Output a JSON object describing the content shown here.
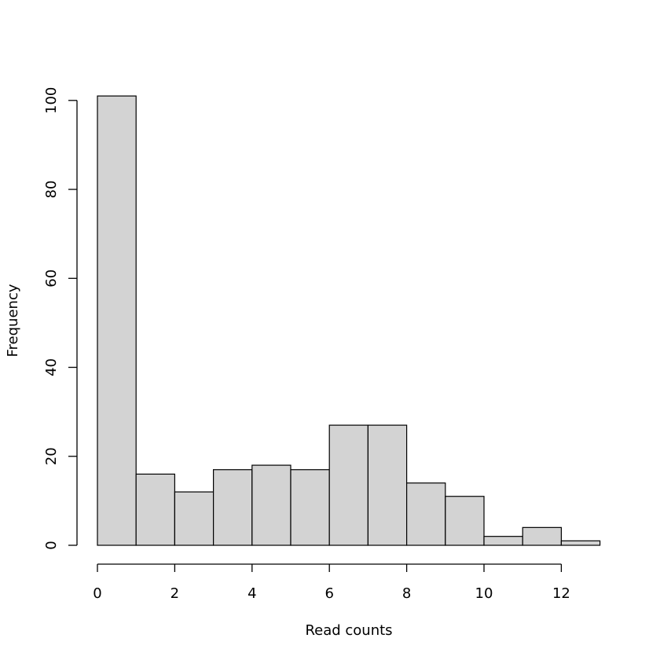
{
  "chart_data": {
    "type": "bar",
    "subtype": "histogram",
    "title": "",
    "xlabel": "Read counts",
    "ylabel": "Frequency",
    "bins": [
      {
        "start": 0,
        "end": 1,
        "count": 101
      },
      {
        "start": 1,
        "end": 2,
        "count": 16
      },
      {
        "start": 2,
        "end": 3,
        "count": 12
      },
      {
        "start": 3,
        "end": 4,
        "count": 17
      },
      {
        "start": 4,
        "end": 5,
        "count": 18
      },
      {
        "start": 5,
        "end": 6,
        "count": 17
      },
      {
        "start": 6,
        "end": 7,
        "count": 27
      },
      {
        "start": 7,
        "end": 8,
        "count": 27
      },
      {
        "start": 8,
        "end": 9,
        "count": 14
      },
      {
        "start": 9,
        "end": 10,
        "count": 11
      },
      {
        "start": 10,
        "end": 11,
        "count": 2
      },
      {
        "start": 11,
        "end": 12,
        "count": 4
      },
      {
        "start": 12,
        "end": 13,
        "count": 1
      }
    ],
    "xlim": [
      0,
      13
    ],
    "ylim": [
      0,
      104
    ],
    "x_ticks": [
      0,
      2,
      4,
      6,
      8,
      10,
      12
    ],
    "y_ticks": [
      0,
      20,
      40,
      60,
      80,
      100
    ],
    "bar_color": "#d3d3d3",
    "edge_color": "#000000",
    "grid": false
  }
}
